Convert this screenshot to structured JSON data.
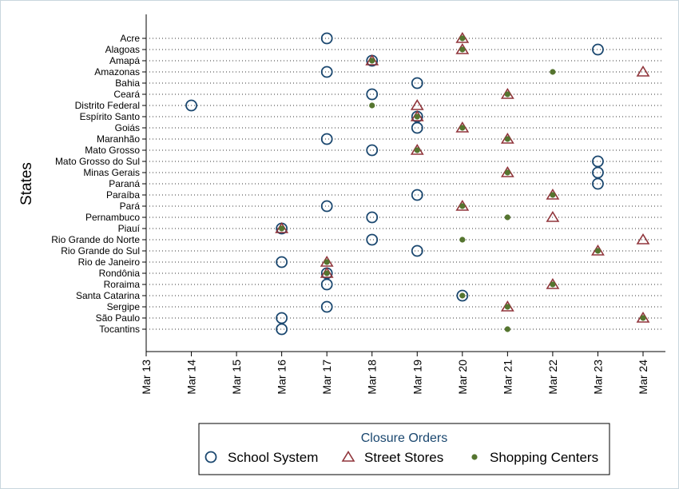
{
  "chart_data": {
    "type": "scatter",
    "title": "",
    "ylabel": "States",
    "xlabel": "",
    "x_ticks": [
      "Mar 13",
      "Mar 14",
      "Mar 15",
      "Mar 16",
      "Mar 17",
      "Mar 18",
      "Mar 19",
      "Mar 20",
      "Mar 21",
      "Mar 22",
      "Mar 23",
      "Mar 24"
    ],
    "xlim": [
      13,
      24.3
    ],
    "grid": "horizontal dotted",
    "legend": {
      "title": "Closure Orders",
      "placement": "bottom",
      "title_color": "#1a476f"
    },
    "categories": [
      "Acre",
      "Alagoas",
      "Amapá",
      "Amazonas",
      "Bahia",
      "Ceará",
      "Distrito Federal",
      "Espírito Santo",
      "Goiás",
      "Maranhão",
      "Mato Grosso",
      "Mato Grosso do Sul",
      "Minas Gerais",
      "Paraná",
      "Paraíba",
      "Pará",
      "Pernambuco",
      "Piauí",
      "Rio Grande do Norte",
      "Rio Grande do Sul",
      "Rio de Janeiro",
      "Rondônia",
      "Roraima",
      "Santa Catarina",
      "Sergipe",
      "São Paulo",
      "Tocantins"
    ],
    "series": [
      {
        "name": "School System",
        "marker": "hollow-circle",
        "color": "#1a476f",
        "values": [
          17,
          23,
          18,
          17,
          19,
          18,
          14,
          19,
          19,
          17,
          18,
          23,
          23,
          23,
          19,
          17,
          18,
          16,
          18,
          19,
          16,
          17,
          17,
          20,
          17,
          16,
          16
        ]
      },
      {
        "name": "Street Stores",
        "marker": "hollow-triangle",
        "color": "#90353b",
        "values": [
          20,
          20,
          18,
          24,
          null,
          21,
          19,
          19,
          20,
          21,
          19,
          null,
          21,
          null,
          22,
          20,
          22,
          16,
          24,
          23,
          17,
          17,
          22,
          null,
          21,
          24,
          null
        ]
      },
      {
        "name": "Shopping Centers",
        "marker": "filled-dot",
        "color": "#55752f",
        "values": [
          20,
          20,
          18,
          22,
          null,
          21,
          18,
          19,
          20,
          21,
          19,
          null,
          21,
          null,
          22,
          20,
          21,
          16,
          20,
          23,
          17,
          17,
          22,
          20,
          21,
          24,
          21
        ]
      }
    ]
  }
}
